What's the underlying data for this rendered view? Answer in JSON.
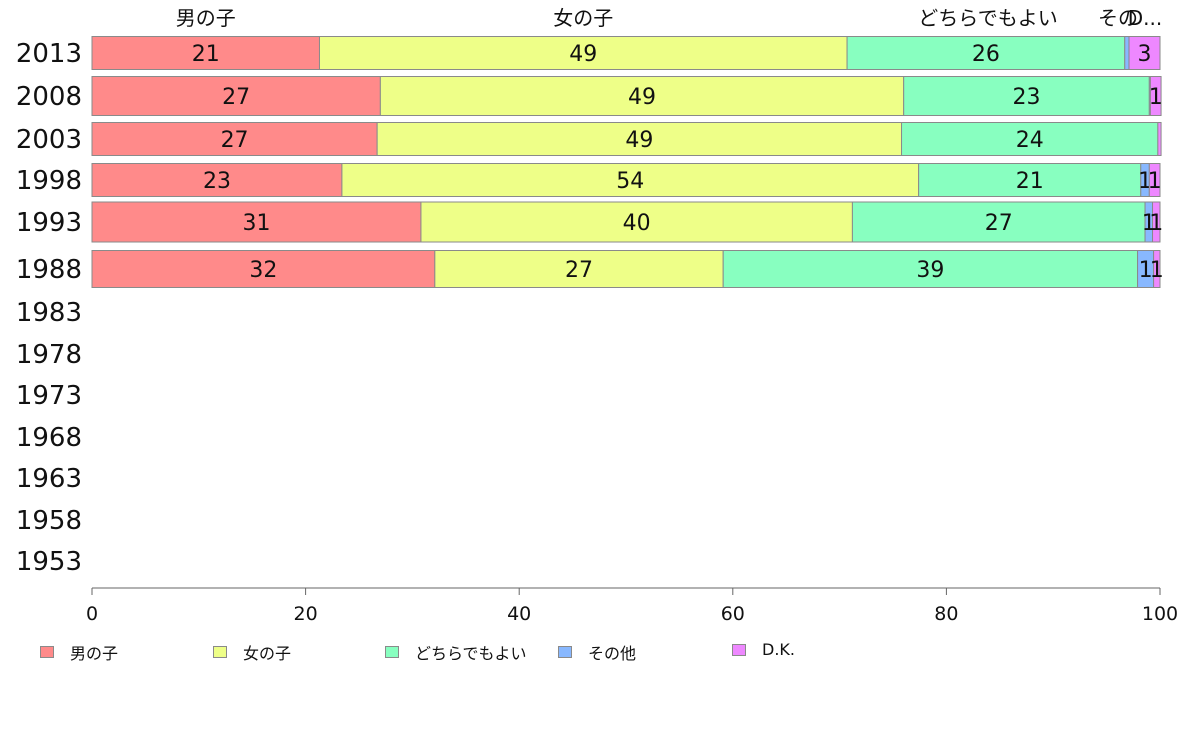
{
  "chart_data": {
    "type": "bar",
    "orientation": "horizontal",
    "stacked": true,
    "title": "",
    "xlabel": "",
    "ylabel": "",
    "xlim": [
      0,
      100
    ],
    "xticks": [
      "0",
      "20",
      "40",
      "60",
      "80",
      "100"
    ],
    "categories": [
      "2013",
      "2008",
      "2003",
      "1998",
      "1993",
      "1988",
      "1983",
      "1978",
      "1973",
      "1968",
      "1963",
      "1958",
      "1953"
    ],
    "series": [
      {
        "name": "男の子",
        "color": "#ff8a8a",
        "values": [
          21.3,
          27.0,
          26.7,
          23.4,
          30.8,
          32.1,
          null,
          null,
          null,
          null,
          null,
          null,
          null
        ],
        "labels": [
          "21",
          "27",
          "27",
          "23",
          "31",
          "32",
          "",
          "",
          "",
          "",
          "",
          "",
          ""
        ]
      },
      {
        "name": "女の子",
        "color": "#eeff88",
        "values": [
          49.4,
          49.0,
          49.1,
          54.0,
          40.4,
          27.0,
          null,
          null,
          null,
          null,
          null,
          null,
          null
        ],
        "labels": [
          "49",
          "49",
          "49",
          "54",
          "40",
          "27",
          "",
          "",
          "",
          "",
          "",
          "",
          ""
        ]
      },
      {
        "name": "どちらでもよい",
        "color": "#88ffc0",
        "values": [
          26.0,
          23.0,
          24.0,
          20.8,
          27.4,
          38.8,
          null,
          null,
          null,
          null,
          null,
          null,
          null
        ],
        "labels": [
          "26",
          "23",
          "24",
          "21",
          "27",
          "39",
          "",
          "",
          "",
          "",
          "",
          "",
          ""
        ]
      },
      {
        "name": "その他",
        "color": "#88b8ff",
        "values": [
          0.4,
          0.1,
          0.0,
          0.8,
          0.7,
          1.5,
          null,
          null,
          null,
          null,
          null,
          null,
          null
        ],
        "labels": [
          "",
          "",
          "",
          "1",
          "1",
          "1",
          "",
          "",
          "",
          "",
          "",
          "",
          ""
        ]
      },
      {
        "name": "D.K.",
        "color": "#ee88ff",
        "values": [
          2.9,
          1.0,
          0.3,
          1.0,
          0.7,
          0.6,
          null,
          null,
          null,
          null,
          null,
          null,
          null
        ],
        "labels": [
          "3",
          "1",
          "",
          "1",
          "1",
          "1",
          "",
          "",
          "",
          "",
          "",
          "",
          ""
        ]
      }
    ],
    "top_labels": [
      "男の子",
      "女の子",
      "どちらでもよい",
      "その",
      "D..."
    ],
    "legend_position": "bottom",
    "grid": false
  }
}
